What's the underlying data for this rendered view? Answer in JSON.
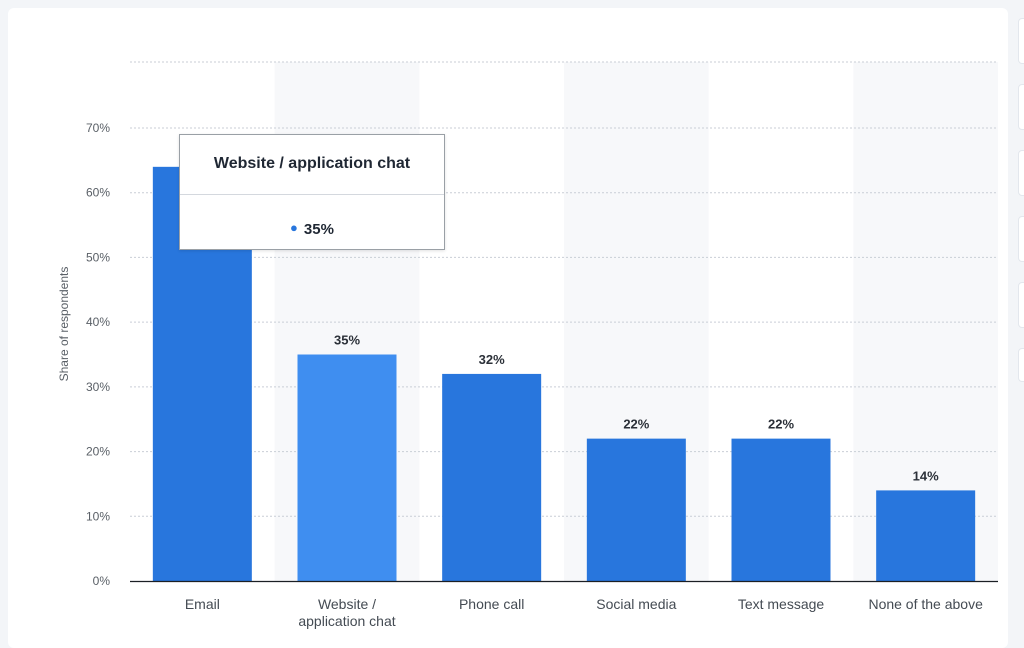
{
  "chart_data": {
    "type": "bar",
    "categories": [
      "Email",
      "Website / application chat",
      "Phone call",
      "Social media",
      "Text message",
      "None of the above"
    ],
    "category_lines": [
      [
        "Email"
      ],
      [
        "Website /",
        "application chat"
      ],
      [
        "Phone call"
      ],
      [
        "Social media"
      ],
      [
        "Text message"
      ],
      [
        "None of the above"
      ]
    ],
    "values": [
      64,
      35,
      32,
      22,
      22,
      14
    ],
    "data_labels": [
      "",
      "35%",
      "32%",
      "22%",
      "22%",
      "14%"
    ],
    "highlighted_index": 1,
    "ylabel": "Share of respondents",
    "ylim": [
      0,
      80
    ],
    "yticks": [
      0,
      10,
      20,
      30,
      40,
      50,
      60,
      70
    ],
    "ytick_labels": [
      "0%",
      "10%",
      "20%",
      "30%",
      "40%",
      "50%",
      "60%",
      "70%"
    ],
    "grid": "dotted horizontal",
    "colors": {
      "bar": "#2876dd",
      "bar_highlight": "#3f8ef0",
      "alt_band": "#f7f8fa",
      "grid": "#c9ced6",
      "axis": "#1b1f24"
    }
  },
  "tooltip": {
    "title": "Website / application chat",
    "value": "35%"
  }
}
